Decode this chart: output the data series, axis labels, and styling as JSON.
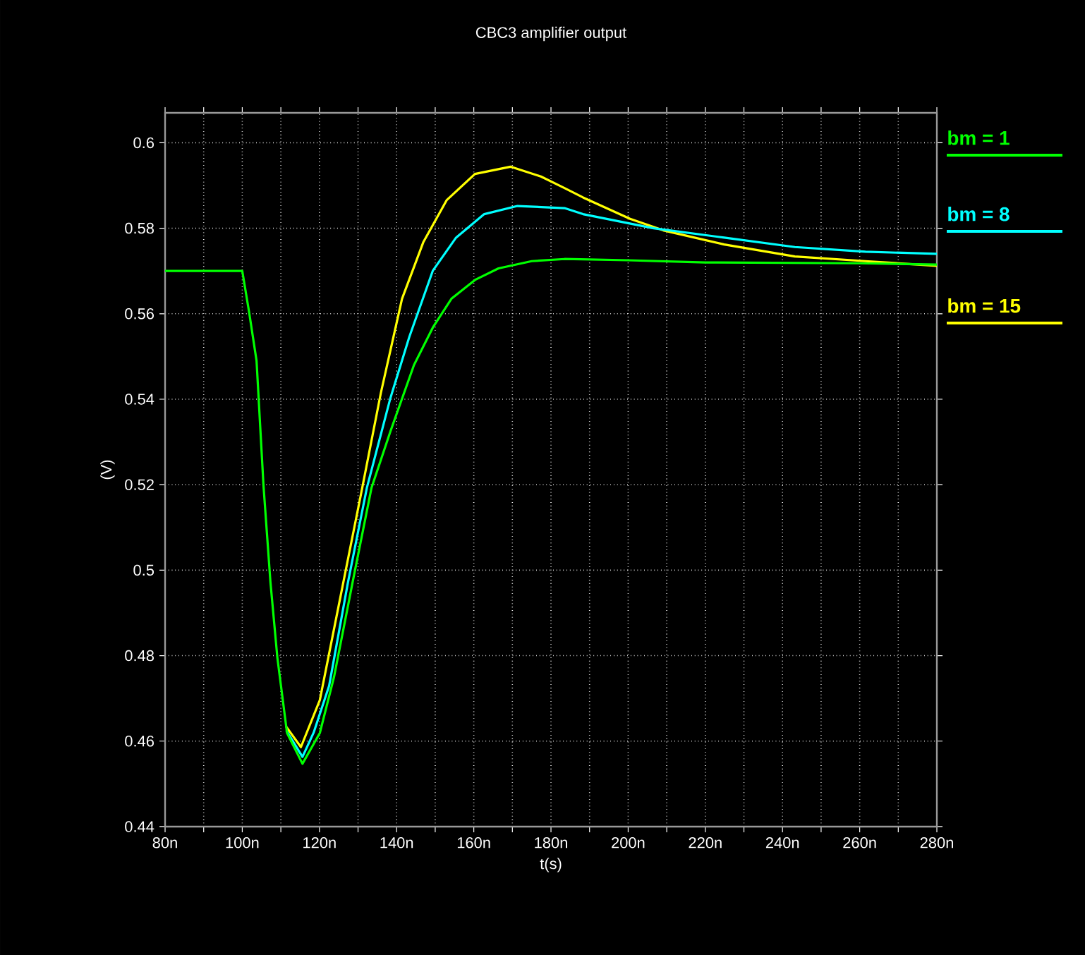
{
  "chart_data": {
    "type": "line",
    "title": "CBC3 amplifier output",
    "xlabel": "t(s)",
    "ylabel": "(V)",
    "xlim": [
      80,
      280
    ],
    "ylim": [
      0.44,
      0.607
    ],
    "xticks": [
      {
        "value": 80,
        "label": "80n"
      },
      {
        "value": 90,
        "label": null
      },
      {
        "value": 100,
        "label": "100n"
      },
      {
        "value": 110,
        "label": null
      },
      {
        "value": 120,
        "label": "120n"
      },
      {
        "value": 130,
        "label": null
      },
      {
        "value": 140,
        "label": "140n"
      },
      {
        "value": 150,
        "label": null
      },
      {
        "value": 160,
        "label": "160n"
      },
      {
        "value": 170,
        "label": null
      },
      {
        "value": 180,
        "label": "180n"
      },
      {
        "value": 190,
        "label": null
      },
      {
        "value": 200,
        "label": "200n"
      },
      {
        "value": 210,
        "label": null
      },
      {
        "value": 220,
        "label": "220n"
      },
      {
        "value": 230,
        "label": null
      },
      {
        "value": 240,
        "label": "240n"
      },
      {
        "value": 250,
        "label": null
      },
      {
        "value": 260,
        "label": "260n"
      },
      {
        "value": 270,
        "label": null
      },
      {
        "value": 280,
        "label": "280n"
      }
    ],
    "yticks": [
      0.44,
      0.46,
      0.48,
      0.5,
      0.52,
      0.54,
      0.56,
      0.58,
      0.6
    ],
    "grid": true,
    "legend": "right",
    "marker": "none",
    "line_style": "solid",
    "series": [
      {
        "name": "bm = 1",
        "color": "#00ff00",
        "x": [
          80,
          100,
          101.8,
          103.7,
          105.5,
          107.3,
          109.1,
          111.6,
          115.6,
          120.1,
          123.8,
          128.6,
          133.5,
          138.4,
          144.5,
          149.4,
          154.2,
          160.3,
          166.4,
          175,
          183.5,
          200,
          220,
          260,
          280
        ],
        "values": [
          0.57,
          0.57,
          0.5602,
          0.549,
          0.5198,
          0.4972,
          0.4795,
          0.4619,
          0.4547,
          0.4619,
          0.4751,
          0.4972,
          0.5193,
          0.5325,
          0.548,
          0.5568,
          0.5635,
          0.5679,
          0.5706,
          0.5723,
          0.5728,
          0.5725,
          0.572,
          0.5718,
          0.5715
        ]
      },
      {
        "name": "bm = 8",
        "color": "#00ffff",
        "x": [
          111.4,
          115.6,
          118.5,
          122.5,
          127.4,
          132.3,
          138.4,
          143.3,
          149.4,
          155.4,
          162.7,
          171.3,
          183.5,
          188.3,
          206.6,
          224.9,
          243.2,
          261.5,
          280
        ],
        "values": [
          0.4625,
          0.4563,
          0.462,
          0.4729,
          0.4972,
          0.5193,
          0.5403,
          0.5546,
          0.5701,
          0.5778,
          0.5833,
          0.5852,
          0.5847,
          0.5833,
          0.58,
          0.5778,
          0.5756,
          0.5745,
          0.574
        ]
      },
      {
        "name": "bm = 15",
        "color": "#ffff00",
        "x": [
          111.3,
          115.2,
          120.1,
          126.2,
          131.1,
          135.9,
          141.4,
          146.9,
          153,
          160.3,
          169.5,
          177.4,
          183.5,
          188.3,
          200.5,
          209.1,
          224.9,
          243.2,
          261.5,
          280
        ],
        "values": [
          0.4635,
          0.4586,
          0.4696,
          0.4972,
          0.5193,
          0.5414,
          0.5635,
          0.5767,
          0.5866,
          0.5927,
          0.5944,
          0.5921,
          0.5894,
          0.5872,
          0.5822,
          0.5795,
          0.5762,
          0.5734,
          0.5723,
          0.5712
        ]
      }
    ]
  }
}
